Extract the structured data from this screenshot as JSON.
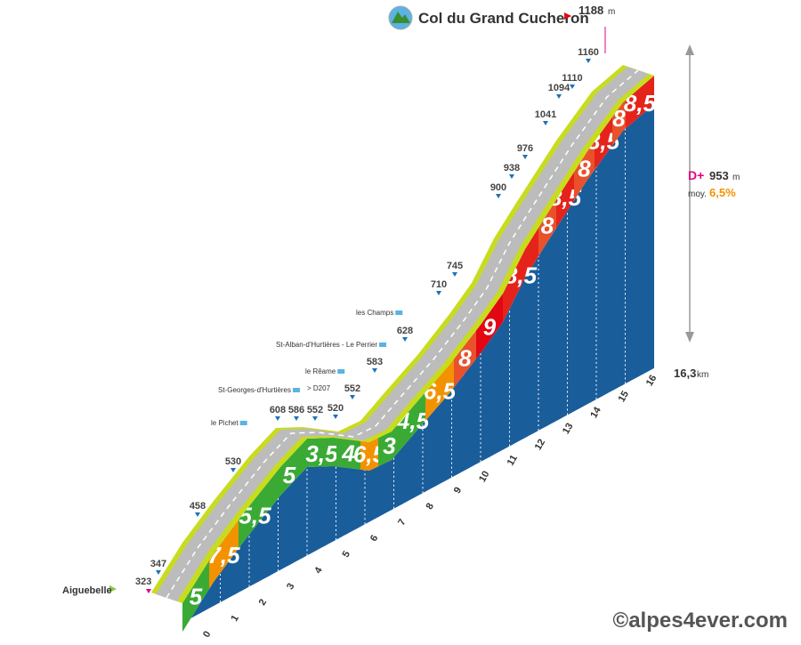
{
  "header": {
    "title": "Col du Grand Cucheron",
    "summit_altitude": 1188,
    "summit_unit": "m"
  },
  "start": {
    "name": "Aiguebelle",
    "altitude": 323
  },
  "altitudes": [
    347,
    458,
    530,
    608,
    586,
    552,
    520,
    552,
    583,
    628,
    710,
    745,
    900,
    938,
    976,
    1041,
    1094,
    1110,
    1160
  ],
  "places": [
    "le Pichet",
    "St-Georges-d'Hurtières",
    "> D207",
    "le Rêame",
    "St-Alban-d'Hurtières - Le Perrier",
    "les Champs"
  ],
  "gradients": [
    {
      "label": "5",
      "color": "#3aaa35"
    },
    {
      "label": "7,5",
      "color": "#f39200"
    },
    {
      "label": "5,5",
      "color": "#3aaa35"
    },
    {
      "label": "5",
      "color": "#3aaa35"
    },
    {
      "label": "3,5",
      "color": "#3aaa35"
    },
    {
      "label": "4",
      "color": "#3aaa35"
    },
    {
      "label": "6,5",
      "color": "#f39200"
    },
    {
      "label": "3",
      "color": "#3aaa35"
    },
    {
      "label": "4,5",
      "color": "#3aaa35"
    },
    {
      "label": "6,5",
      "color": "#f39200"
    },
    {
      "label": "8",
      "color": "#e8512a"
    },
    {
      "label": "9",
      "color": "#e30613"
    },
    {
      "label": "8,5",
      "color": "#e5231b"
    },
    {
      "label": "8",
      "color": "#e8512a"
    },
    {
      "label": "8,5",
      "color": "#e5231b"
    },
    {
      "label": "8",
      "color": "#e8512a"
    },
    {
      "label": "8,5",
      "color": "#e5231b"
    },
    {
      "label": "8",
      "color": "#e8512a"
    },
    {
      "label": "8,5",
      "color": "#e5231b"
    }
  ],
  "km_labels": [
    "0",
    "1",
    "2",
    "3",
    "4",
    "5",
    "6",
    "7",
    "8",
    "9",
    "10",
    "11",
    "12",
    "13",
    "14",
    "15",
    "16"
  ],
  "distance": {
    "value": "16,3",
    "unit": "km"
  },
  "elevation_gain": {
    "label": "D+",
    "value": 953,
    "unit": "m"
  },
  "average": {
    "label": "moy.",
    "value": "6,5%"
  },
  "copyright": "©alpes4ever.com"
}
